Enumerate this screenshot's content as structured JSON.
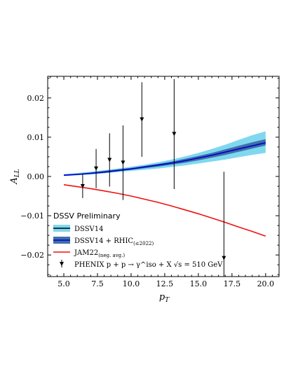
{
  "chart_data": {
    "type": "line",
    "xlabel": "p_T",
    "ylabel": "A_LL",
    "xlim": [
      3.8,
      21.0
    ],
    "ylim": [
      -0.0255,
      0.0255
    ],
    "x_ticks": [
      5.0,
      7.5,
      10.0,
      12.5,
      15.0,
      17.5,
      20.0
    ],
    "x_tick_labels": [
      "5.0",
      "7.5",
      "10.0",
      "12.5",
      "15.0",
      "17.5",
      "20.0"
    ],
    "y_ticks": [
      -0.02,
      -0.01,
      0.0,
      0.01,
      0.02
    ],
    "y_tick_labels": [
      "−0.02",
      "−0.01",
      "0.00",
      "0.01",
      "0.02"
    ],
    "grid": false,
    "legend": {
      "title": "DSSV Preliminary",
      "placement": "lower-left",
      "entries": [
        {
          "label": "DSSV14",
          "sub": ""
        },
        {
          "label": "DSSV14 + RHIC",
          "sub": "(≤2022)"
        },
        {
          "label": "JAM22",
          "sub": "(neg. avg.)"
        },
        {
          "label": "PHENIX p + p → γ^iso + X √s = 510 GeV",
          "sub": ""
        }
      ]
    },
    "series": [
      {
        "name": "DSSV14",
        "kind": "band",
        "color": "#7fd8ef",
        "x": [
          5.0,
          6.0,
          7.0,
          8.0,
          9.0,
          10.0,
          11.0,
          12.0,
          13.0,
          14.0,
          15.0,
          16.0,
          17.0,
          18.0,
          19.0,
          20.0
        ],
        "lower": [
          0.0001,
          0.0003,
          0.0005,
          0.0008,
          0.0011,
          0.0014,
          0.0017,
          0.002,
          0.0024,
          0.0028,
          0.0033,
          0.0038,
          0.0043,
          0.0049,
          0.0055,
          0.006
        ],
        "upper": [
          0.0006,
          0.0009,
          0.0012,
          0.0016,
          0.002,
          0.0025,
          0.003,
          0.0036,
          0.0043,
          0.0051,
          0.006,
          0.007,
          0.0081,
          0.0093,
          0.0105,
          0.0115
        ]
      },
      {
        "name": "DSSV14 + RHIC",
        "sub": "(≤2022)",
        "kind": "band",
        "color": "#3f6fa8",
        "x": [
          5.0,
          6.0,
          7.0,
          8.0,
          9.0,
          10.0,
          11.0,
          12.0,
          13.0,
          14.0,
          15.0,
          16.0,
          17.0,
          18.0,
          19.0,
          20.0
        ],
        "lower": [
          0.0002,
          0.0004,
          0.0006,
          0.0009,
          0.0013,
          0.0017,
          0.0021,
          0.0025,
          0.003,
          0.0035,
          0.0041,
          0.0048,
          0.0055,
          0.0063,
          0.0071,
          0.0079
        ],
        "upper": [
          0.0005,
          0.0007,
          0.001,
          0.0014,
          0.0018,
          0.0022,
          0.0027,
          0.0032,
          0.0038,
          0.0045,
          0.0052,
          0.006,
          0.0069,
          0.0078,
          0.0087,
          0.0095
        ]
      },
      {
        "name": "central",
        "kind": "line",
        "color": "#0000cc",
        "x": [
          5.0,
          6.0,
          7.0,
          8.0,
          9.0,
          10.0,
          11.0,
          12.0,
          13.0,
          14.0,
          15.0,
          16.0,
          17.0,
          18.0,
          19.0,
          20.0
        ],
        "y": [
          0.0003,
          0.0005,
          0.0008,
          0.0011,
          0.0015,
          0.0019,
          0.0024,
          0.0029,
          0.0034,
          0.004,
          0.0047,
          0.0054,
          0.0062,
          0.007,
          0.0078,
          0.0086
        ]
      },
      {
        "name": "JAM22",
        "sub": "(neg. avg.)",
        "kind": "line",
        "color": "#ee1111",
        "x": [
          5.0,
          6.0,
          7.0,
          8.0,
          9.0,
          10.0,
          11.0,
          12.0,
          13.0,
          14.0,
          15.0,
          16.0,
          17.0,
          18.0,
          19.0,
          20.0
        ],
        "y": [
          -0.0021,
          -0.0026,
          -0.0031,
          -0.0037,
          -0.0043,
          -0.005,
          -0.0058,
          -0.0066,
          -0.0075,
          -0.0085,
          -0.0095,
          -0.0106,
          -0.0117,
          -0.0129,
          -0.014,
          -0.0152
        ]
      },
      {
        "name": "PHENIX",
        "kind": "errorbar",
        "color": "#000000",
        "x": [
          6.4,
          7.4,
          8.4,
          9.4,
          10.8,
          13.2,
          16.9
        ],
        "y": [
          -0.0025,
          0.002,
          0.0042,
          0.0035,
          0.0145,
          0.0108,
          -0.0208
        ],
        "err": [
          0.003,
          0.005,
          0.0068,
          0.0095,
          0.0095,
          0.014,
          0.022
        ]
      }
    ]
  }
}
